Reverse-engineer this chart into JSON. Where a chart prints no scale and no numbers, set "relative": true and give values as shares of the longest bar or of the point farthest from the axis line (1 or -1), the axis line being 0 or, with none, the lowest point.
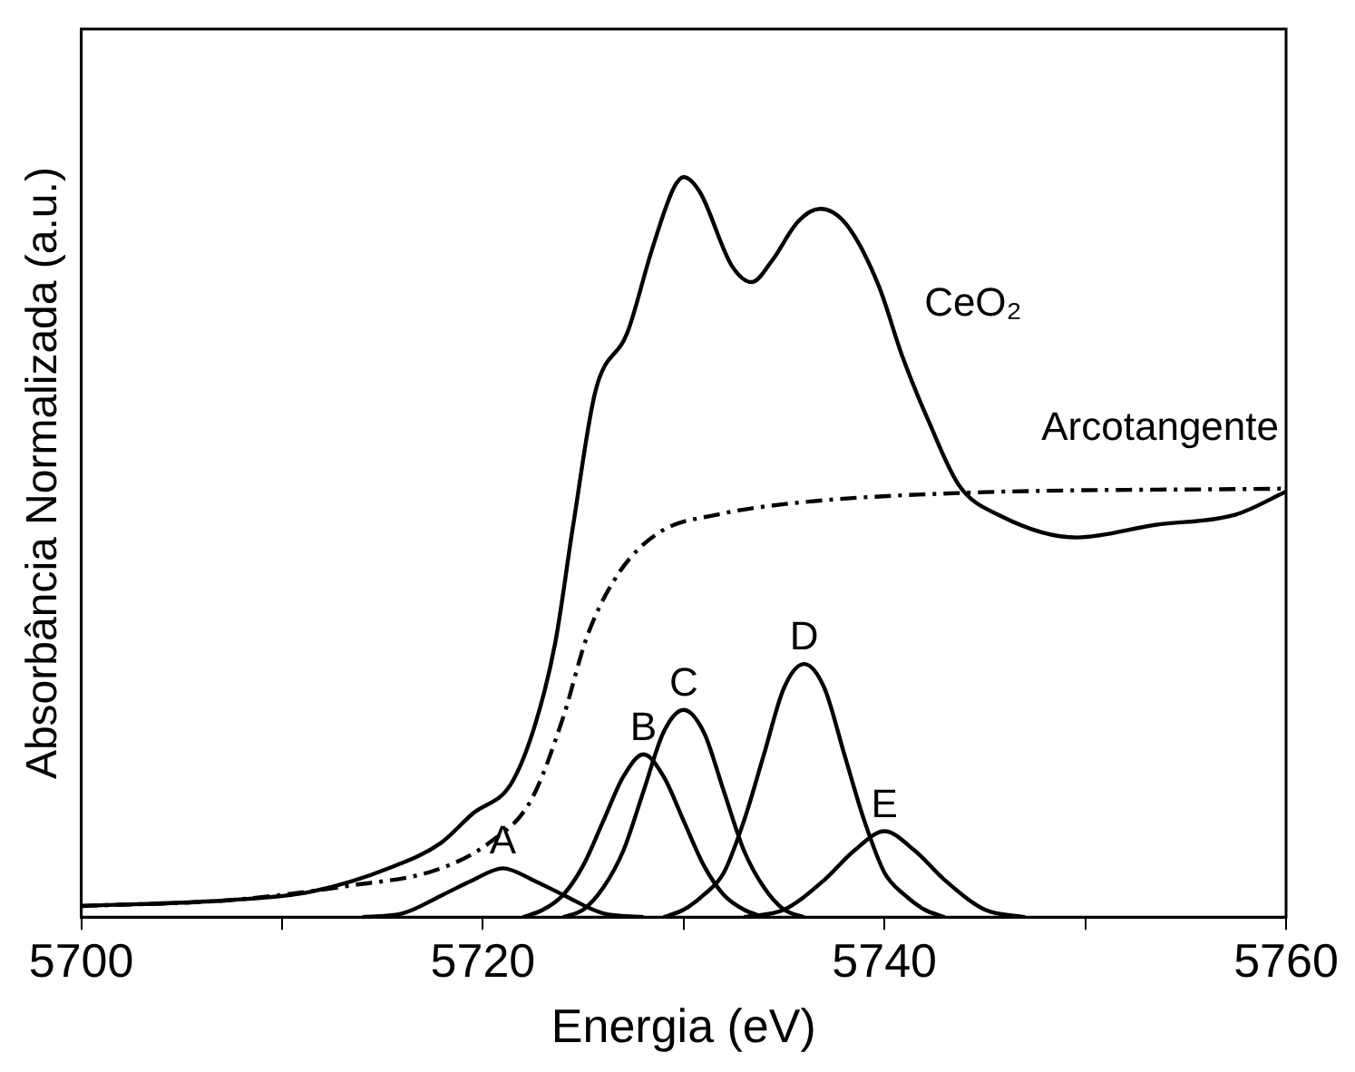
{
  "chart_data": {
    "type": "line",
    "relative": true,
    "xlabel": "Energia (eV)",
    "ylabel": "Absorbância Normalizada (a.u.)",
    "xlim": [
      5700,
      5760
    ],
    "xticks": [
      5700,
      {
        "value": 5710,
        "label": null
      },
      5720,
      {
        "value": 5730,
        "label": null
      },
      5740,
      {
        "value": 5750,
        "label": null
      },
      5760
    ],
    "tick_labels": "x",
    "grid": false,
    "legend": false,
    "marker": "none",
    "line_style": "solid",
    "series": [
      {
        "name": "CeO₂",
        "color": "#000000",
        "x": [
          5700,
          5707.4,
          5711.4,
          5715.5,
          5717.9,
          5719.5,
          5721.4,
          5722.6,
          5723.6,
          5724.5,
          5725.6,
          5727.2,
          5728.4,
          5729.5,
          5730,
          5730.8,
          5732.4,
          5733.4,
          5734.4,
          5735.7,
          5736.8,
          5738.1,
          5739.7,
          5740.9,
          5742.2,
          5743.7,
          5745.8,
          5749.6,
          5753.5,
          5757.5,
          5760
        ],
        "values": [
          0.015,
          0.023,
          0.034,
          0.068,
          0.1,
          0.14,
          0.18,
          0.26,
          0.37,
          0.53,
          0.71,
          0.79,
          0.9,
          0.985,
          1,
          0.98,
          0.88,
          0.858,
          0.887,
          0.94,
          0.957,
          0.936,
          0.854,
          0.757,
          0.67,
          0.584,
          0.542,
          0.513,
          0.53,
          0.544,
          0.575
        ]
      },
      {
        "name": "Arcotangente",
        "color": "#000000",
        "line_style": "dashed",
        "x": [
          5700,
          5707.4,
          5713.5,
          5717.6,
          5720.3,
          5722.4,
          5724,
          5725.2,
          5726.8,
          5728.8,
          5731.7,
          5735.7,
          5743.7,
          5760
        ],
        "values": [
          0.015,
          0.023,
          0.043,
          0.063,
          0.1,
          0.158,
          0.27,
          0.38,
          0.466,
          0.52,
          0.544,
          0.56,
          0.573,
          0.579
        ]
      },
      {
        "name": "A",
        "color": "#000000",
        "x": [
          5714,
          5716,
          5718,
          5719.5,
          5721,
          5722.5,
          5724,
          5726,
          5728
        ],
        "values": [
          0,
          0.005,
          0.03,
          0.05,
          0.066,
          0.05,
          0.03,
          0.005,
          0
        ]
      },
      {
        "name": "B",
        "color": "#000000",
        "x": [
          5722,
          5723,
          5724,
          5725,
          5726,
          5727,
          5728,
          5729,
          5730,
          5731,
          5732,
          5733,
          5734
        ],
        "values": [
          0,
          0.01,
          0.03,
          0.07,
          0.13,
          0.19,
          0.22,
          0.19,
          0.13,
          0.07,
          0.03,
          0.01,
          0
        ]
      },
      {
        "name": "C",
        "color": "#000000",
        "x": [
          5724,
          5725,
          5726,
          5727,
          5728,
          5729,
          5730,
          5731,
          5732,
          5733,
          5734,
          5735,
          5736
        ],
        "values": [
          0,
          0.01,
          0.04,
          0.09,
          0.17,
          0.25,
          0.28,
          0.25,
          0.17,
          0.09,
          0.04,
          0.01,
          0
        ]
      },
      {
        "name": "D",
        "color": "#000000",
        "x": [
          5729,
          5730,
          5731,
          5732,
          5733,
          5734,
          5735,
          5736,
          5737,
          5738,
          5739,
          5740,
          5741,
          5742,
          5743
        ],
        "values": [
          0,
          0.01,
          0.03,
          0.06,
          0.13,
          0.22,
          0.31,
          0.342,
          0.31,
          0.22,
          0.13,
          0.06,
          0.03,
          0.01,
          0
        ]
      },
      {
        "name": "E",
        "color": "#000000",
        "x": [
          5733,
          5735,
          5737,
          5738.5,
          5740,
          5741.5,
          5743,
          5745,
          5747
        ],
        "values": [
          0,
          0.01,
          0.05,
          0.09,
          0.116,
          0.09,
          0.05,
          0.01,
          0
        ]
      }
    ]
  }
}
